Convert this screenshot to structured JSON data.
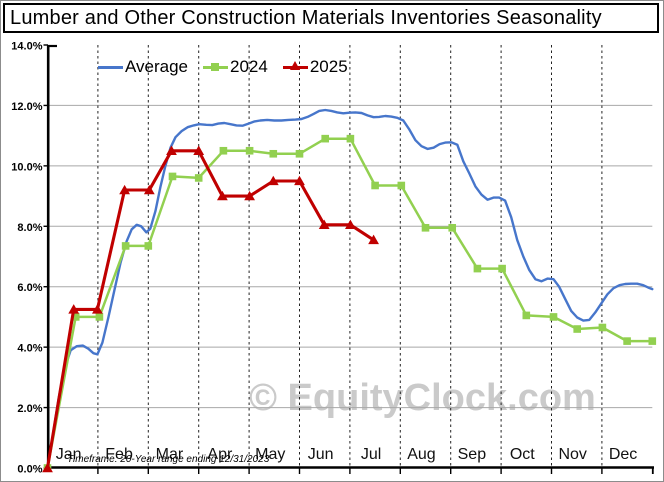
{
  "watermark": "© EquityClock.com",
  "footnote": "Timeframe: 20-Year range ending 12/31/2023",
  "colors": {
    "average": "#4776cb",
    "y2024": "#92d050",
    "y2025": "#c00000",
    "grid": "#a8a8a8",
    "month_grid": "#222222",
    "axis": "#000000",
    "watermark": "#cacaca"
  },
  "chart_data": {
    "type": "line",
    "title": "Lumber and Other Construction Materials Inventories Seasonality",
    "x_unit": "calendar position in months, 0 = Jan 1 through 12 = Dec 31",
    "categories": [
      "Jan",
      "Feb",
      "Mar",
      "Apr",
      "May",
      "Jun",
      "Jul",
      "Aug",
      "Sep",
      "Oct",
      "Nov",
      "Dec"
    ],
    "ylim": [
      0,
      14
    ],
    "y_tick_step": 2,
    "y_tick_labels": [
      "0.0%",
      "2.0%",
      "4.0%",
      "6.0%",
      "8.0%",
      "10.0%",
      "12.0%",
      "14.0%"
    ],
    "grid": {
      "horizontal": "solid gray every 2%",
      "vertical": "dashed black at month boundaries"
    },
    "legend_position": "top-left-inside",
    "series": [
      {
        "name": "Average",
        "color": "#4776cb",
        "marker": "none",
        "line_width": 2.4,
        "points": [
          [
            0,
            0
          ],
          [
            0.1,
            1.0
          ],
          [
            0.22,
            2.3
          ],
          [
            0.34,
            3.3
          ],
          [
            0.46,
            3.9
          ],
          [
            0.58,
            4.03
          ],
          [
            0.7,
            4.05
          ],
          [
            0.81,
            3.95
          ],
          [
            0.91,
            3.8
          ],
          [
            0.99,
            3.76
          ],
          [
            1.09,
            4.15
          ],
          [
            1.21,
            5.0
          ],
          [
            1.33,
            5.9
          ],
          [
            1.45,
            6.8
          ],
          [
            1.57,
            7.5
          ],
          [
            1.67,
            7.9
          ],
          [
            1.77,
            8.05
          ],
          [
            1.86,
            8.0
          ],
          [
            1.96,
            7.8
          ],
          [
            2.04,
            7.92
          ],
          [
            2.14,
            8.5
          ],
          [
            2.24,
            9.3
          ],
          [
            2.34,
            10.0
          ],
          [
            2.44,
            10.6
          ],
          [
            2.54,
            10.95
          ],
          [
            2.66,
            11.15
          ],
          [
            2.78,
            11.28
          ],
          [
            2.9,
            11.34
          ],
          [
            3.01,
            11.38
          ],
          [
            3.15,
            11.36
          ],
          [
            3.27,
            11.35
          ],
          [
            3.39,
            11.4
          ],
          [
            3.51,
            11.42
          ],
          [
            3.63,
            11.38
          ],
          [
            3.75,
            11.34
          ],
          [
            3.87,
            11.33
          ],
          [
            3.99,
            11.4
          ],
          [
            4.11,
            11.47
          ],
          [
            4.22,
            11.5
          ],
          [
            4.36,
            11.52
          ],
          [
            4.5,
            11.5
          ],
          [
            4.64,
            11.5
          ],
          [
            4.78,
            11.52
          ],
          [
            4.92,
            11.53
          ],
          [
            5.04,
            11.55
          ],
          [
            5.16,
            11.62
          ],
          [
            5.28,
            11.72
          ],
          [
            5.39,
            11.82
          ],
          [
            5.51,
            11.85
          ],
          [
            5.63,
            11.82
          ],
          [
            5.75,
            11.77
          ],
          [
            5.87,
            11.74
          ],
          [
            5.99,
            11.76
          ],
          [
            6.11,
            11.77
          ],
          [
            6.23,
            11.75
          ],
          [
            6.35,
            11.67
          ],
          [
            6.47,
            11.61
          ],
          [
            6.58,
            11.62
          ],
          [
            6.7,
            11.65
          ],
          [
            6.82,
            11.63
          ],
          [
            6.94,
            11.59
          ],
          [
            7.06,
            11.5
          ],
          [
            7.18,
            11.2
          ],
          [
            7.3,
            10.85
          ],
          [
            7.42,
            10.65
          ],
          [
            7.54,
            10.56
          ],
          [
            7.66,
            10.6
          ],
          [
            7.78,
            10.72
          ],
          [
            7.89,
            10.77
          ],
          [
            8.01,
            10.78
          ],
          [
            8.13,
            10.7
          ],
          [
            8.25,
            10.15
          ],
          [
            8.37,
            9.75
          ],
          [
            8.49,
            9.32
          ],
          [
            8.61,
            9.05
          ],
          [
            8.73,
            8.88
          ],
          [
            8.85,
            8.95
          ],
          [
            8.96,
            8.95
          ],
          [
            9.08,
            8.85
          ],
          [
            9.2,
            8.3
          ],
          [
            9.32,
            7.55
          ],
          [
            9.44,
            7.0
          ],
          [
            9.56,
            6.55
          ],
          [
            9.68,
            6.25
          ],
          [
            9.8,
            6.18
          ],
          [
            9.92,
            6.27
          ],
          [
            10.04,
            6.25
          ],
          [
            10.15,
            6.0
          ],
          [
            10.27,
            5.6
          ],
          [
            10.39,
            5.2
          ],
          [
            10.51,
            4.98
          ],
          [
            10.63,
            4.88
          ],
          [
            10.75,
            4.9
          ],
          [
            10.87,
            5.15
          ],
          [
            10.99,
            5.45
          ],
          [
            11.11,
            5.75
          ],
          [
            11.23,
            5.95
          ],
          [
            11.35,
            6.05
          ],
          [
            11.46,
            6.09
          ],
          [
            11.58,
            6.1
          ],
          [
            11.7,
            6.1
          ],
          [
            11.82,
            6.05
          ],
          [
            11.92,
            5.97
          ],
          [
            12,
            5.92
          ]
        ]
      },
      {
        "name": "2024",
        "color": "#92d050",
        "marker": "square",
        "line_width": 2.5,
        "points": [
          [
            0,
            0
          ],
          [
            0.56,
            5.0
          ],
          [
            1.03,
            5.0
          ],
          [
            1.55,
            7.35
          ],
          [
            2.0,
            7.35
          ],
          [
            2.48,
            9.65
          ],
          [
            3.0,
            9.6
          ],
          [
            3.49,
            10.5
          ],
          [
            4.01,
            10.5
          ],
          [
            4.48,
            10.4
          ],
          [
            5.0,
            10.4
          ],
          [
            5.51,
            10.9
          ],
          [
            6.01,
            10.9
          ],
          [
            6.5,
            9.35
          ],
          [
            7.02,
            9.35
          ],
          [
            7.5,
            7.95
          ],
          [
            8.03,
            7.95
          ],
          [
            8.53,
            6.6
          ],
          [
            9.02,
            6.6
          ],
          [
            9.5,
            5.05
          ],
          [
            10.04,
            5.0
          ],
          [
            10.51,
            4.6
          ],
          [
            11.01,
            4.65
          ],
          [
            11.5,
            4.2
          ],
          [
            12.0,
            4.2
          ]
        ]
      },
      {
        "name": "2025",
        "color": "#c00000",
        "marker": "triangle",
        "line_width": 3.1,
        "points": [
          [
            0,
            0
          ],
          [
            0.52,
            5.25
          ],
          [
            0.99,
            5.25
          ],
          [
            1.53,
            9.2
          ],
          [
            2.02,
            9.2
          ],
          [
            2.46,
            10.5
          ],
          [
            3.0,
            10.5
          ],
          [
            3.47,
            9.0
          ],
          [
            4.01,
            9.0
          ],
          [
            4.48,
            9.5
          ],
          [
            5.0,
            9.5
          ],
          [
            5.49,
            8.05
          ],
          [
            6.01,
            8.05
          ],
          [
            6.47,
            7.55
          ]
        ]
      }
    ]
  }
}
